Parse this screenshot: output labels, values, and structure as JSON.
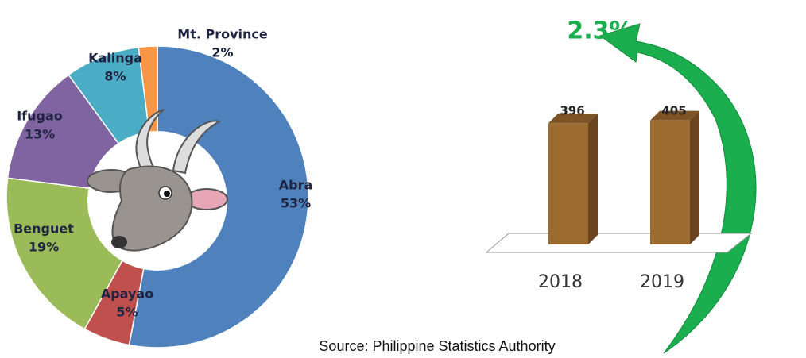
{
  "chart_data": [
    {
      "type": "pie",
      "categories": [
        "Abra",
        "Apayao",
        "Benguet",
        "Ifugao",
        "Kalinga",
        "Mt. Province"
      ],
      "values": [
        53,
        5,
        19,
        13,
        8,
        2
      ],
      "value_labels": [
        "53%",
        "5%",
        "19%",
        "13%",
        "8%",
        "2%"
      ],
      "colors": [
        "#4f81bd",
        "#c0504d",
        "#9bbb59",
        "#8064a2",
        "#4bacc6",
        "#f79646"
      ]
    },
    {
      "type": "bar",
      "categories": [
        "2018",
        "2019"
      ],
      "values": [
        396,
        405
      ],
      "color": "#9c6b30",
      "annotations": [
        "2.3%"
      ]
    }
  ],
  "source": "Source: Philippine Statistics Authority"
}
